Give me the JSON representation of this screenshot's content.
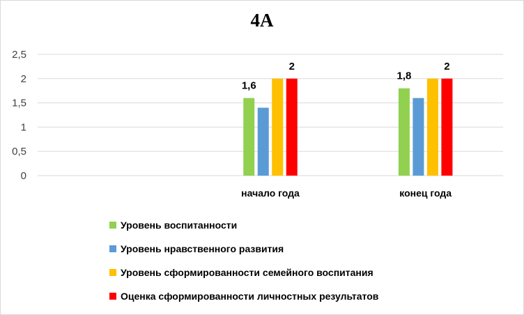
{
  "chart_data": {
    "type": "bar",
    "title": "4А",
    "categories": [
      "",
      "начало года",
      "конец года"
    ],
    "ylim": [
      0,
      2.5
    ],
    "yticks": [
      "0",
      "0,5",
      "1",
      "1,5",
      "2",
      "2,5"
    ],
    "grid": true,
    "legend_position": "bottom",
    "series": [
      {
        "name": "Уровень воспитанности",
        "color": "#92d050",
        "values": [
          null,
          1.6,
          1.8
        ],
        "labels": [
          "",
          "1,6",
          "1,8"
        ]
      },
      {
        "name": "Уровень нравственного развития",
        "color": "#5b9bd5",
        "values": [
          null,
          1.4,
          1.6
        ],
        "labels": [
          "",
          "",
          ""
        ]
      },
      {
        "name": "Уровень сформированности семейного воспитания",
        "color": "#ffc000",
        "values": [
          null,
          2,
          2
        ],
        "labels": [
          "",
          "",
          ""
        ]
      },
      {
        "name": "Оценка сформированности личностных результатов",
        "color": "#ff0000",
        "values": [
          null,
          2,
          2
        ],
        "labels": [
          "",
          "2",
          "2"
        ]
      }
    ]
  }
}
